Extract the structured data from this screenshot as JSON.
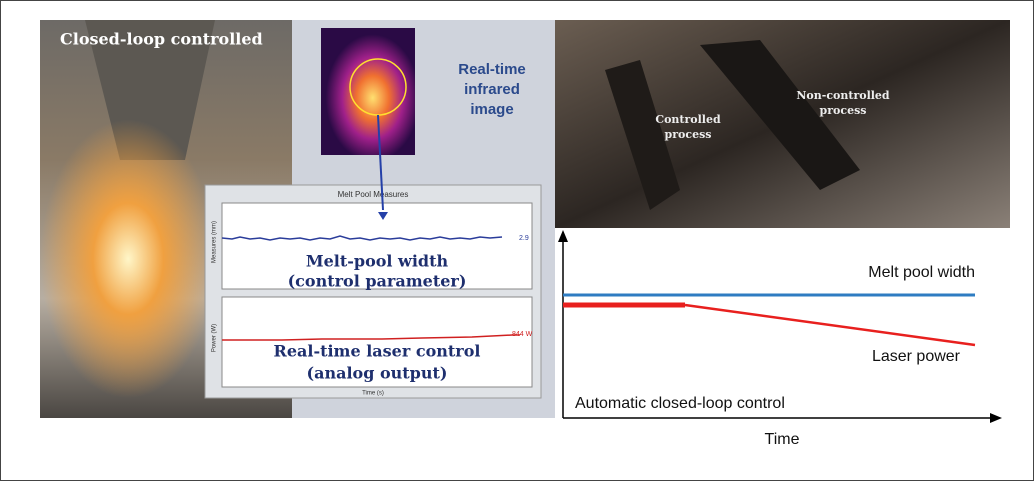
{
  "left_photo": {
    "caption": "Closed-loop controlled"
  },
  "infrared": {
    "caption": [
      "Real-time",
      "infrared",
      "image"
    ]
  },
  "monitor": {
    "title": "Melt Pool Measures",
    "top_plot": {
      "y_label": "Measures (mm)",
      "readout": "2.9",
      "annotation": [
        "Melt-pool width",
        "(control parameter)"
      ]
    },
    "bottom_plot": {
      "y_label": "Power (W)",
      "readout": "844 W",
      "annotation": [
        "Real-time laser control",
        "(analog output)"
      ]
    },
    "x_label": "Time (s)"
  },
  "right_photo": {
    "labels": [
      [
        "Controlled",
        "process"
      ],
      [
        "Non-controlled",
        "process"
      ]
    ]
  },
  "schematic": {
    "lines": [
      "Melt pool width",
      "Laser power"
    ],
    "note": "Automatic closed-loop control",
    "x_label": "Time"
  }
}
